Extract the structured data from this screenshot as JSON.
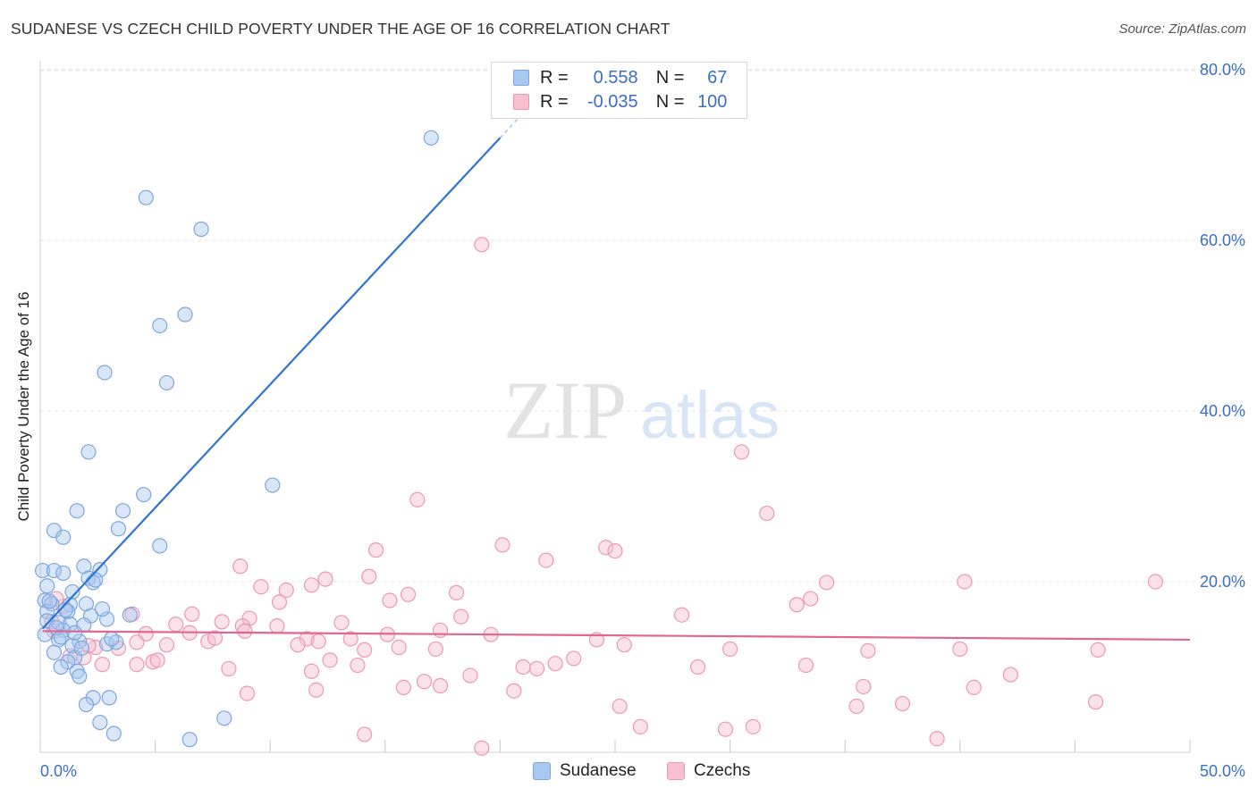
{
  "title": "SUDANESE VS CZECH CHILD POVERTY UNDER THE AGE OF 16 CORRELATION CHART",
  "source": "Source: ZipAtlas.com",
  "watermark": {
    "zip": "ZIP",
    "atlas": "atlas"
  },
  "legend": {
    "rows": [
      {
        "r_label": "R =",
        "r_value": "0.558",
        "n_label": "N =",
        "n_value": "67",
        "color": "#a9c8f0",
        "border": "#7ca6de"
      },
      {
        "r_label": "R =",
        "r_value": "-0.035",
        "n_label": "N =",
        "n_value": "100",
        "color": "#f7bfd0",
        "border": "#ee97b2"
      }
    ]
  },
  "bottom_legend": [
    {
      "label": "Sudanese",
      "color": "#a9c8f0",
      "border": "#7ca6de"
    },
    {
      "label": "Czechs",
      "color": "#f7bfd0",
      "border": "#ee97b2"
    }
  ],
  "chart_data": {
    "type": "scatter",
    "title": "SUDANESE VS CZECH CHILD POVERTY UNDER THE AGE OF 16 CORRELATION CHART",
    "xlabel": "",
    "ylabel": "Child Poverty Under the Age of 16",
    "xlim": [
      0,
      50
    ],
    "ylim": [
      0,
      82
    ],
    "x_tick_labels": [
      "0.0%",
      "50.0%"
    ],
    "y_ticks": [
      20,
      40,
      60,
      80
    ],
    "y_tick_labels": [
      "20.0%",
      "40.0%",
      "60.0%",
      "80.0%"
    ],
    "grid": true,
    "legend_position": "top-center",
    "series": [
      {
        "name": "Sudanese",
        "color": "#a9c8f0",
        "edge": "#7ca6de",
        "trend_color": "#2f74d0",
        "trend": {
          "x": [
            0.1,
            20.0
          ],
          "y": [
            14.5,
            72.0
          ],
          "dashed_to": [
            21.2,
            75.5
          ]
        },
        "points": [
          [
            17.0,
            72.0
          ],
          [
            4.6,
            65.0
          ],
          [
            7.0,
            61.3
          ],
          [
            6.3,
            51.3
          ],
          [
            5.2,
            50.0
          ],
          [
            2.8,
            44.5
          ],
          [
            5.5,
            43.3
          ],
          [
            2.1,
            35.2
          ],
          [
            10.1,
            31.3
          ],
          [
            4.5,
            30.2
          ],
          [
            1.6,
            28.3
          ],
          [
            3.6,
            28.3
          ],
          [
            3.4,
            26.2
          ],
          [
            0.6,
            26.0
          ],
          [
            1.0,
            25.2
          ],
          [
            5.2,
            24.2
          ],
          [
            0.1,
            21.3
          ],
          [
            0.6,
            21.3
          ],
          [
            1.0,
            21.0
          ],
          [
            1.9,
            21.8
          ],
          [
            2.6,
            21.4
          ],
          [
            2.1,
            20.4
          ],
          [
            2.3,
            19.9
          ],
          [
            1.4,
            18.8
          ],
          [
            0.2,
            17.8
          ],
          [
            0.5,
            17.4
          ],
          [
            1.3,
            17.3
          ],
          [
            2.0,
            17.4
          ],
          [
            0.3,
            16.5
          ],
          [
            1.2,
            16.5
          ],
          [
            2.2,
            16.0
          ],
          [
            3.9,
            16.1
          ],
          [
            0.3,
            15.4
          ],
          [
            0.8,
            15.2
          ],
          [
            1.3,
            15.0
          ],
          [
            1.9,
            14.9
          ],
          [
            2.9,
            15.6
          ],
          [
            1.0,
            14.3
          ],
          [
            0.2,
            13.8
          ],
          [
            0.8,
            13.2
          ],
          [
            1.7,
            13.0
          ],
          [
            1.4,
            12.5
          ],
          [
            2.9,
            12.7
          ],
          [
            3.3,
            12.9
          ],
          [
            0.6,
            11.7
          ],
          [
            1.5,
            11.1
          ],
          [
            1.2,
            10.6
          ],
          [
            0.9,
            10.0
          ],
          [
            1.6,
            9.5
          ],
          [
            1.7,
            8.9
          ],
          [
            2.3,
            6.4
          ],
          [
            3.0,
            6.4
          ],
          [
            2.0,
            5.6
          ],
          [
            2.6,
            3.5
          ],
          [
            8.0,
            4.0
          ],
          [
            3.2,
            2.2
          ],
          [
            6.5,
            1.5
          ],
          [
            0.4,
            17.7
          ],
          [
            1.1,
            16.7
          ],
          [
            0.7,
            14.6
          ],
          [
            2.4,
            20.2
          ],
          [
            0.3,
            19.5
          ],
          [
            1.8,
            12.2
          ],
          [
            0.9,
            13.5
          ],
          [
            2.7,
            16.8
          ],
          [
            1.5,
            14.0
          ],
          [
            3.1,
            13.3
          ]
        ]
      },
      {
        "name": "Czechs",
        "color": "#f7bfd0",
        "edge": "#ee97b2",
        "trend_color": "#e06693",
        "trend": {
          "x": [
            0.1,
            50.0
          ],
          "y": [
            14.2,
            13.2
          ]
        },
        "points": [
          [
            19.2,
            59.5
          ],
          [
            30.5,
            35.2
          ],
          [
            31.6,
            28.0
          ],
          [
            16.4,
            29.6
          ],
          [
            20.1,
            24.3
          ],
          [
            24.6,
            24.0
          ],
          [
            25.0,
            23.6
          ],
          [
            14.6,
            23.7
          ],
          [
            22.0,
            22.5
          ],
          [
            8.7,
            21.8
          ],
          [
            14.3,
            20.6
          ],
          [
            12.4,
            20.3
          ],
          [
            11.8,
            19.6
          ],
          [
            9.6,
            19.4
          ],
          [
            10.7,
            19.0
          ],
          [
            34.2,
            19.9
          ],
          [
            40.2,
            20.0
          ],
          [
            48.5,
            20.0
          ],
          [
            33.5,
            18.0
          ],
          [
            32.9,
            17.3
          ],
          [
            16.0,
            18.5
          ],
          [
            15.2,
            17.8
          ],
          [
            18.1,
            18.7
          ],
          [
            10.4,
            17.6
          ],
          [
            6.6,
            16.2
          ],
          [
            9.1,
            15.7
          ],
          [
            18.3,
            15.9
          ],
          [
            27.9,
            16.1
          ],
          [
            5.9,
            15.0
          ],
          [
            7.9,
            15.3
          ],
          [
            8.8,
            14.8
          ],
          [
            10.3,
            14.8
          ],
          [
            13.1,
            15.2
          ],
          [
            17.4,
            14.3
          ],
          [
            6.5,
            14.0
          ],
          [
            8.9,
            14.2
          ],
          [
            4.0,
            16.2
          ],
          [
            4.6,
            13.9
          ],
          [
            5.5,
            12.6
          ],
          [
            7.3,
            13.0
          ],
          [
            7.6,
            13.4
          ],
          [
            11.6,
            13.3
          ],
          [
            12.1,
            13.0
          ],
          [
            13.5,
            13.3
          ],
          [
            15.1,
            13.8
          ],
          [
            19.6,
            13.8
          ],
          [
            24.2,
            13.2
          ],
          [
            3.4,
            12.2
          ],
          [
            4.2,
            12.9
          ],
          [
            2.4,
            12.3
          ],
          [
            2.1,
            12.5
          ],
          [
            0.6,
            14.2
          ],
          [
            1.0,
            17.1
          ],
          [
            0.7,
            18.0
          ],
          [
            0.5,
            15.3
          ],
          [
            1.3,
            11.3
          ],
          [
            1.9,
            11.1
          ],
          [
            2.7,
            10.3
          ],
          [
            4.2,
            10.3
          ],
          [
            4.9,
            10.6
          ],
          [
            5.1,
            10.8
          ],
          [
            8.2,
            9.8
          ],
          [
            11.2,
            12.6
          ],
          [
            12.6,
            10.8
          ],
          [
            13.8,
            10.2
          ],
          [
            15.6,
            12.3
          ],
          [
            17.2,
            12.1
          ],
          [
            21.0,
            10.0
          ],
          [
            21.6,
            9.8
          ],
          [
            22.4,
            10.4
          ],
          [
            23.2,
            11.0
          ],
          [
            25.4,
            12.6
          ],
          [
            28.6,
            10.0
          ],
          [
            30.0,
            12.1
          ],
          [
            33.3,
            10.2
          ],
          [
            36.0,
            11.9
          ],
          [
            40.0,
            12.1
          ],
          [
            46.0,
            12.0
          ],
          [
            14.1,
            12.0
          ],
          [
            12.0,
            7.3
          ],
          [
            9.0,
            6.9
          ],
          [
            11.8,
            9.5
          ],
          [
            15.8,
            7.6
          ],
          [
            16.7,
            8.3
          ],
          [
            17.4,
            7.8
          ],
          [
            18.7,
            9.0
          ],
          [
            20.6,
            7.2
          ],
          [
            25.2,
            5.4
          ],
          [
            26.1,
            3.0
          ],
          [
            29.8,
            2.7
          ],
          [
            31.0,
            3.0
          ],
          [
            35.8,
            7.7
          ],
          [
            35.5,
            5.4
          ],
          [
            37.5,
            5.7
          ],
          [
            40.6,
            7.6
          ],
          [
            42.2,
            9.1
          ],
          [
            39.0,
            1.6
          ],
          [
            45.9,
            5.9
          ],
          [
            14.1,
            2.1
          ],
          [
            19.2,
            0.5
          ]
        ]
      }
    ]
  }
}
